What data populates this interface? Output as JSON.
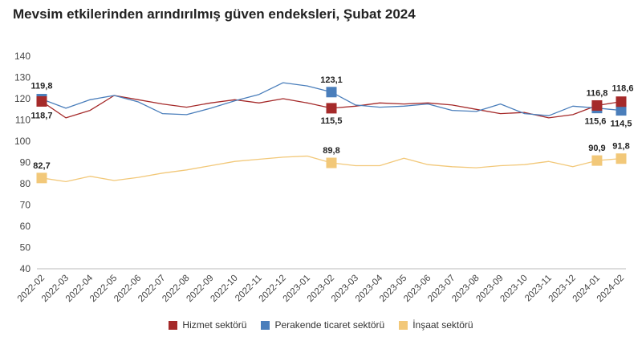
{
  "chart_data": {
    "type": "line",
    "title": "Mevsim etkilerinden arındırılmış güven endeksleri, Şubat 2024",
    "xlabel": "",
    "ylabel": "",
    "ylim": [
      40,
      140
    ],
    "yticks": [
      40,
      50,
      60,
      70,
      80,
      90,
      100,
      110,
      120,
      130,
      140
    ],
    "grid": false,
    "legend_position": "bottom",
    "categories": [
      "2022-02",
      "2022-03",
      "2022-04",
      "2022-05",
      "2022-06",
      "2022-07",
      "2022-08",
      "2022-09",
      "2022-10",
      "2022-11",
      "2022-12",
      "2023-01",
      "2023-02",
      "2023-03",
      "2023-04",
      "2023-05",
      "2023-06",
      "2023-07",
      "2023-08",
      "2023-09",
      "2023-10",
      "2023-11",
      "2023-12",
      "2024-01",
      "2024-02"
    ],
    "series": [
      {
        "name": "Hizmet sektörü",
        "color": "#a52a2a",
        "values": [
          118.7,
          111.0,
          114.5,
          121.5,
          119.5,
          117.5,
          116.0,
          118.0,
          119.5,
          118.0,
          120.0,
          118.0,
          115.5,
          116.5,
          118.0,
          117.5,
          118.0,
          117.0,
          115.0,
          113.0,
          113.5,
          111.0,
          112.5,
          116.8,
          118.6
        ],
        "labeled": [
          0,
          12,
          23,
          24
        ]
      },
      {
        "name": "Perakende ticaret sektörü",
        "color": "#4a7ebb",
        "values": [
          119.8,
          115.5,
          119.5,
          121.5,
          118.5,
          113.0,
          112.5,
          115.5,
          119.0,
          122.0,
          127.5,
          126.0,
          123.1,
          117.0,
          116.0,
          116.5,
          117.5,
          114.5,
          114.0,
          117.5,
          113.0,
          112.0,
          116.5,
          115.6,
          114.5
        ],
        "labeled": [
          0,
          12,
          23,
          24
        ]
      },
      {
        "name": "İnşaat sektörü",
        "color": "#f2c879",
        "values": [
          82.7,
          81.0,
          83.5,
          81.5,
          83.0,
          85.0,
          86.5,
          88.5,
          90.5,
          91.5,
          92.5,
          93.0,
          89.8,
          88.5,
          88.5,
          92.0,
          89.0,
          88.0,
          87.5,
          88.5,
          89.0,
          90.5,
          88.0,
          90.9,
          91.8
        ],
        "labeled": [
          0,
          12,
          23,
          24
        ]
      }
    ],
    "data_labels": [
      {
        "series": 1,
        "index": 0,
        "text": "119,8"
      },
      {
        "series": 0,
        "index": 0,
        "text": "118,7"
      },
      {
        "series": 1,
        "index": 12,
        "text": "123,1"
      },
      {
        "series": 0,
        "index": 12,
        "text": "115,5"
      },
      {
        "series": 0,
        "index": 23,
        "text": "116,8"
      },
      {
        "series": 1,
        "index": 23,
        "text": "115,6"
      },
      {
        "series": 0,
        "index": 24,
        "text": "118,6"
      },
      {
        "series": 1,
        "index": 24,
        "text": "114,5"
      },
      {
        "series": 2,
        "index": 0,
        "text": "82,7"
      },
      {
        "series": 2,
        "index": 12,
        "text": "89,8"
      },
      {
        "series": 2,
        "index": 23,
        "text": "90,9"
      },
      {
        "series": 2,
        "index": 24,
        "text": "91,8"
      }
    ]
  }
}
